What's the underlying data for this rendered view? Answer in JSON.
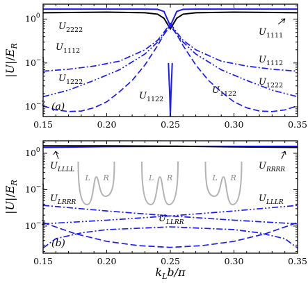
{
  "chart_data": [
    {
      "panel": "(a)",
      "type": "line",
      "ylabel": "|U|/E_R",
      "yscale": "log",
      "ylim": [
        0.006,
        2.2
      ],
      "xlim": [
        0.15,
        0.35
      ],
      "xticks": [
        "0.15",
        "0.20",
        "0.25",
        "0.30",
        "0.35"
      ],
      "yticks": [
        {
          "base": "10",
          "exp": "0"
        },
        {
          "base": "10",
          "exp": "−1"
        },
        {
          "base": "10",
          "exp": "−2"
        }
      ],
      "series": [
        {
          "name": "U_1111",
          "color": "#1a1aff",
          "style": "solid",
          "x": [
            0.15,
            0.2,
            0.23,
            0.24,
            0.245,
            0.25,
            0.255,
            0.26,
            0.27,
            0.3,
            0.35
          ],
          "y": [
            1.7,
            1.7,
            1.7,
            1.68,
            1.5,
            0.7,
            1.5,
            1.68,
            1.7,
            1.7,
            1.7
          ]
        },
        {
          "name": "U_2222",
          "color": "#000000",
          "style": "solid",
          "x": [
            0.15,
            0.2,
            0.23,
            0.24,
            0.245,
            0.25,
            0.255,
            0.26,
            0.27,
            0.3,
            0.35
          ],
          "y": [
            1.4,
            1.45,
            1.4,
            1.3,
            1.05,
            0.6,
            1.05,
            1.3,
            1.4,
            1.45,
            1.4
          ]
        },
        {
          "name": "U_1112",
          "color": "#1a1aff",
          "style": "dashdot",
          "x": [
            0.15,
            0.17,
            0.19,
            0.21,
            0.23,
            0.24,
            0.245,
            0.25,
            0.255,
            0.26,
            0.27,
            0.29,
            0.31,
            0.33,
            0.35
          ],
          "y": [
            0.065,
            0.072,
            0.085,
            0.11,
            0.2,
            0.33,
            0.5,
            0.8,
            0.5,
            0.33,
            0.2,
            0.11,
            0.085,
            0.072,
            0.065
          ]
        },
        {
          "name": "U_1222",
          "color": "#1a1aff",
          "style": "dashdotdot",
          "x": [
            0.15,
            0.17,
            0.19,
            0.21,
            0.23,
            0.24,
            0.245,
            0.25,
            0.255,
            0.26,
            0.27,
            0.29,
            0.31,
            0.33,
            0.35
          ],
          "y": [
            0.017,
            0.024,
            0.04,
            0.07,
            0.16,
            0.3,
            0.45,
            0.7,
            0.45,
            0.3,
            0.16,
            0.07,
            0.04,
            0.024,
            0.017
          ]
        },
        {
          "name": "U_1122",
          "color": "#1a1aff",
          "style": "dashed",
          "x": [
            0.15,
            0.16,
            0.17,
            0.18,
            0.19,
            0.2,
            0.21,
            0.22,
            0.23,
            0.24,
            0.245,
            0.25,
            0.255,
            0.26,
            0.27,
            0.28,
            0.29,
            0.3,
            0.31,
            0.32,
            0.33,
            0.34,
            0.35
          ],
          "y": [
            0.0105,
            0.0085,
            0.0078,
            0.008,
            0.0095,
            0.013,
            0.022,
            0.04,
            0.09,
            0.25,
            0.45,
            0.75,
            0.45,
            0.25,
            0.09,
            0.04,
            0.022,
            0.013,
            0.0095,
            0.008,
            0.0078,
            0.0085,
            0.0105
          ]
        },
        {
          "name": "U_1122 (dip)",
          "color": "#1a1aff",
          "style": "solid",
          "x": [
            0.2485,
            0.2495,
            0.25,
            0.2505,
            0.2515
          ],
          "y": [
            0.1,
            0.02,
            0.006,
            0.02,
            0.1
          ]
        }
      ],
      "annotations": [
        {
          "text": "U",
          "sub": "2222"
        },
        {
          "text": "U",
          "sub": "1111"
        },
        {
          "text": "U",
          "sub": "1112"
        },
        {
          "text": "U",
          "sub": "1112"
        },
        {
          "text": "U",
          "sub": "1222"
        },
        {
          "text": "U",
          "sub": "1222"
        },
        {
          "text": "U",
          "sub": "1122"
        },
        {
          "text": "U",
          "sub": "1122"
        }
      ]
    },
    {
      "panel": "(b)",
      "type": "line",
      "xlabel": "k_L b/π",
      "ylabel": "|U|/E_R",
      "yscale": "log",
      "ylim": [
        0.0018,
        2.2
      ],
      "xlim": [
        0.15,
        0.35
      ],
      "xticks": [
        "0.15",
        "0.20",
        "0.25",
        "0.30",
        "0.35"
      ],
      "yticks": [
        {
          "base": "10",
          "exp": "0"
        },
        {
          "base": "10",
          "exp": "−1"
        },
        {
          "base": "10",
          "exp": "−2"
        }
      ],
      "series": [
        {
          "name": "U_LLLL",
          "color": "#1a1aff",
          "style": "solid",
          "x": [
            0.15,
            0.2,
            0.25,
            0.3,
            0.35
          ],
          "y": [
            1.45,
            1.52,
            1.55,
            1.55,
            1.55
          ]
        },
        {
          "name": "U_RRRR",
          "color": "#000000",
          "style": "solid",
          "x": [
            0.15,
            0.2,
            0.25,
            0.3,
            0.35
          ],
          "y": [
            1.6,
            1.6,
            1.57,
            1.5,
            1.45
          ]
        },
        {
          "name": "U_LRRR",
          "color": "#1a1aff",
          "style": "dashdot",
          "x": [
            0.15,
            0.2,
            0.25,
            0.3,
            0.35
          ],
          "y": [
            0.037,
            0.026,
            0.019,
            0.0145,
            0.0115
          ]
        },
        {
          "name": "U_LLLR",
          "color": "#1a1aff",
          "style": "dashdotdot",
          "x": [
            0.15,
            0.2,
            0.25,
            0.3,
            0.35
          ],
          "y": [
            0.0115,
            0.0145,
            0.019,
            0.026,
            0.037
          ]
        },
        {
          "name": "U_LLRR",
          "color": "#1a1aff",
          "style": "dashed",
          "x": [
            0.15,
            0.175,
            0.2,
            0.225,
            0.25,
            0.275,
            0.3,
            0.325,
            0.35
          ],
          "y": [
            0.0125,
            0.0062,
            0.0038,
            0.0029,
            0.0026,
            0.0029,
            0.0038,
            0.0062,
            0.0125
          ]
        },
        {
          "name": "U_LLRR (other)",
          "color": "#1a1aff",
          "style": "dashdot",
          "x": [
            0.15,
            0.16,
            0.18,
            0.2,
            0.25,
            0.3,
            0.32,
            0.34,
            0.35
          ],
          "y": [
            0.0025,
            0.0045,
            0.0065,
            0.008,
            0.0095,
            0.008,
            0.0065,
            0.0045,
            0.0025
          ]
        }
      ],
      "annotations": [
        {
          "text": "U",
          "sub": "LLLL"
        },
        {
          "text": "U",
          "sub": "RRRR"
        },
        {
          "text": "U",
          "sub": "LRRR"
        },
        {
          "text": "U",
          "sub": "LLLR"
        },
        {
          "text": "U",
          "sub": "LLRR"
        }
      ],
      "insets": [
        {
          "left": "L",
          "right": "R",
          "asymmetry": -0.25
        },
        {
          "left": "L",
          "right": "R",
          "asymmetry": 0
        },
        {
          "left": "L",
          "right": "R",
          "asymmetry": 0.25
        }
      ]
    }
  ]
}
